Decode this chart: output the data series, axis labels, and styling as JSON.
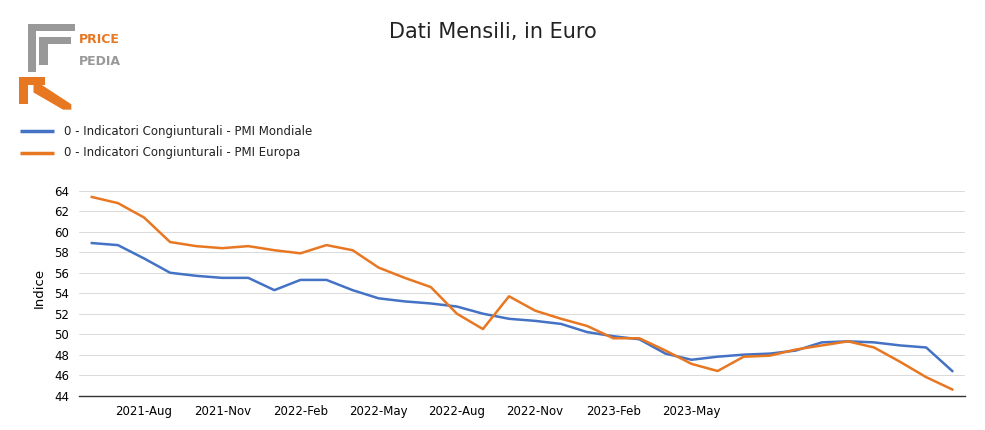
{
  "title": "Dati Mensili, in Euro",
  "ylabel": "Indice",
  "bg_color": "#ffffff",
  "line_mondiale_color": "#4472c4",
  "line_europa_color": "#e87722",
  "legend_mondiale": "0 - Indicatori Congiunturali - PMI Mondiale",
  "legend_europa": "0 - Indicatori Congiunturali - PMI Europa",
  "ylim": [
    44,
    65
  ],
  "yticks": [
    44,
    46,
    48,
    50,
    52,
    54,
    56,
    58,
    60,
    62,
    64
  ],
  "x_labels": [
    "2021-Aug",
    "2021-Nov",
    "2022-Feb",
    "2022-May",
    "2022-Aug",
    "2022-Nov",
    "2023-Feb",
    "2023-May"
  ],
  "mondiale_values": [
    58.9,
    58.7,
    57.4,
    56.0,
    55.7,
    55.5,
    55.5,
    54.3,
    55.3,
    55.3,
    54.3,
    53.5,
    53.2,
    53.0,
    52.7,
    52.0,
    51.5,
    51.3,
    51.0,
    50.2,
    49.8,
    49.5,
    48.1,
    47.5,
    47.8,
    48.0,
    48.1,
    48.4,
    49.2,
    49.3,
    49.2,
    48.9,
    48.7,
    46.4
  ],
  "europa_values": [
    63.4,
    62.8,
    61.4,
    59.0,
    58.6,
    58.4,
    58.6,
    58.2,
    57.9,
    58.7,
    58.2,
    56.5,
    55.5,
    54.6,
    52.0,
    50.5,
    53.7,
    52.3,
    51.5,
    50.8,
    49.6,
    49.6,
    48.4,
    47.1,
    46.4,
    47.8,
    47.9,
    48.5,
    48.9,
    49.3,
    48.7,
    47.3,
    45.8,
    44.6
  ],
  "n_months": 34,
  "logo_price_color": "#e87722",
  "logo_pedia_color": "#666666",
  "logo_box_color": "#aaaaaa"
}
